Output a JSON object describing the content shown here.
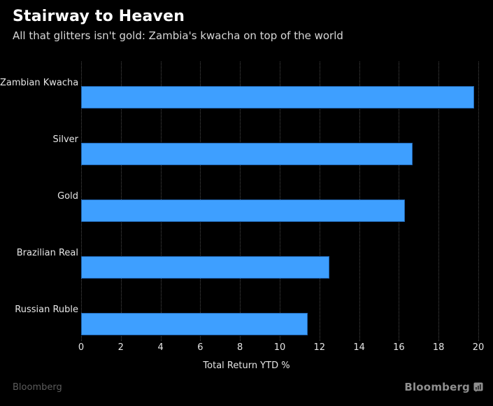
{
  "header": {
    "title": "Stairway to Heaven",
    "subtitle": "All that glitters isn't gold: Zambia's kwacha on top of the world"
  },
  "chart_data": {
    "type": "bar",
    "orientation": "horizontal",
    "title": "Stairway to Heaven",
    "subtitle": "All that glitters isn't gold: Zambia's kwacha on top of the world",
    "categories": [
      "Zambian Kwacha",
      "Silver",
      "Gold",
      "Brazilian Real",
      "Russian Ruble"
    ],
    "values": [
      19.8,
      16.7,
      16.3,
      12.5,
      11.4
    ],
    "xlabel": "Total Return YTD %",
    "ylabel": "",
    "xlim": [
      0,
      20
    ],
    "xticks": [
      0,
      2,
      4,
      6,
      8,
      10,
      12,
      14,
      16,
      18,
      20
    ],
    "grid": "vertical-dotted",
    "legend": "none",
    "colors": {
      "background": "#000000",
      "bar_fill": "#3e9fff",
      "bar_edge": "#2165b2",
      "gridline": "#4a4a4a",
      "tick_text": "#e6e6e6",
      "title_text": "#ffffff",
      "subtitle_text": "#d8d8d8"
    }
  },
  "footer": {
    "source": "Bloomberg",
    "brand": "Bloomberg",
    "brand_icon": "bloomberg-terminal-icon"
  }
}
